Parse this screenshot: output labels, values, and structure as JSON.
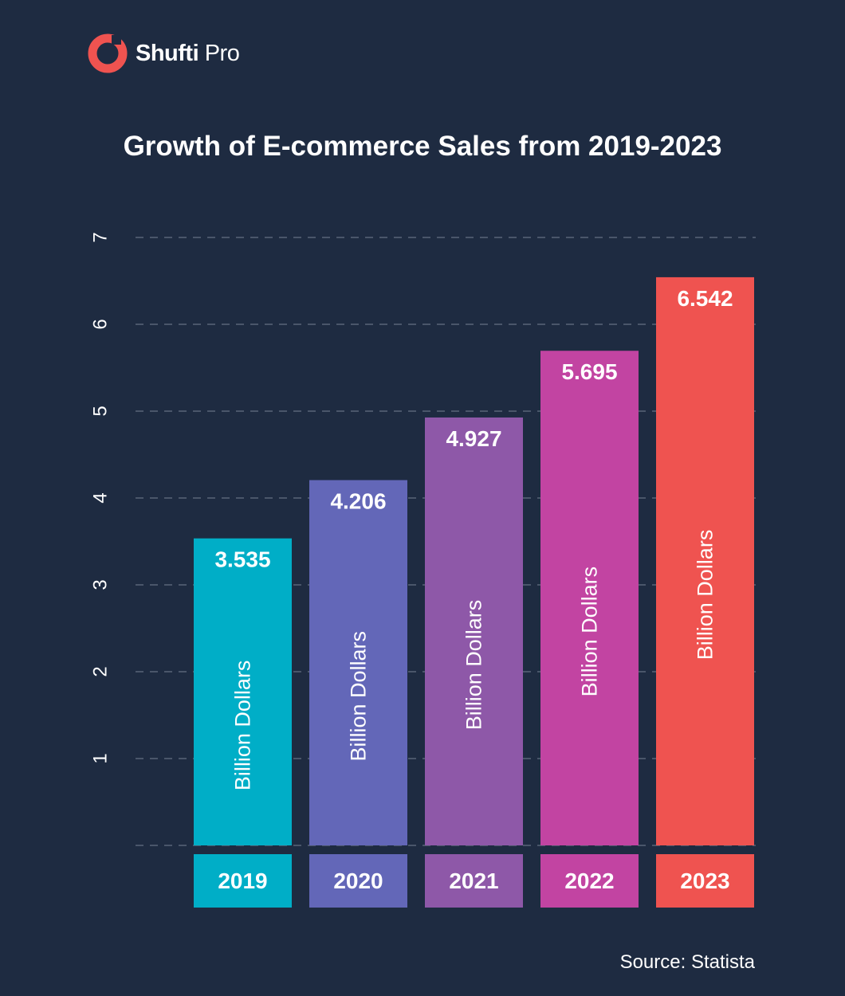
{
  "brand": {
    "name_bold": "Shufti",
    "name_regular": " Pro",
    "logo_color": "#ef5350"
  },
  "colors": {
    "background": "#1e2b41",
    "grid": "#4a566a",
    "series": [
      "#00aec7",
      "#6367b8",
      "#8e58a8",
      "#c244a2",
      "#ef5350"
    ]
  },
  "chart_data": {
    "type": "bar",
    "title": "Growth of E-commerce Sales from 2019-2023",
    "categories": [
      "2019",
      "2020",
      "2021",
      "2022",
      "2023"
    ],
    "values": [
      3.535,
      4.206,
      4.927,
      5.695,
      6.542
    ],
    "value_labels": [
      "3.535",
      "4.206",
      "4.927",
      "5.695",
      "6.542"
    ],
    "unit_label": "Billion Dollars",
    "xlabel": "",
    "ylabel": "",
    "ylim": [
      0,
      7
    ],
    "yticks": [
      1,
      2,
      3,
      4,
      5,
      6,
      7
    ],
    "grid": true,
    "grid_style": "dashed"
  },
  "source": "Source: Statista"
}
